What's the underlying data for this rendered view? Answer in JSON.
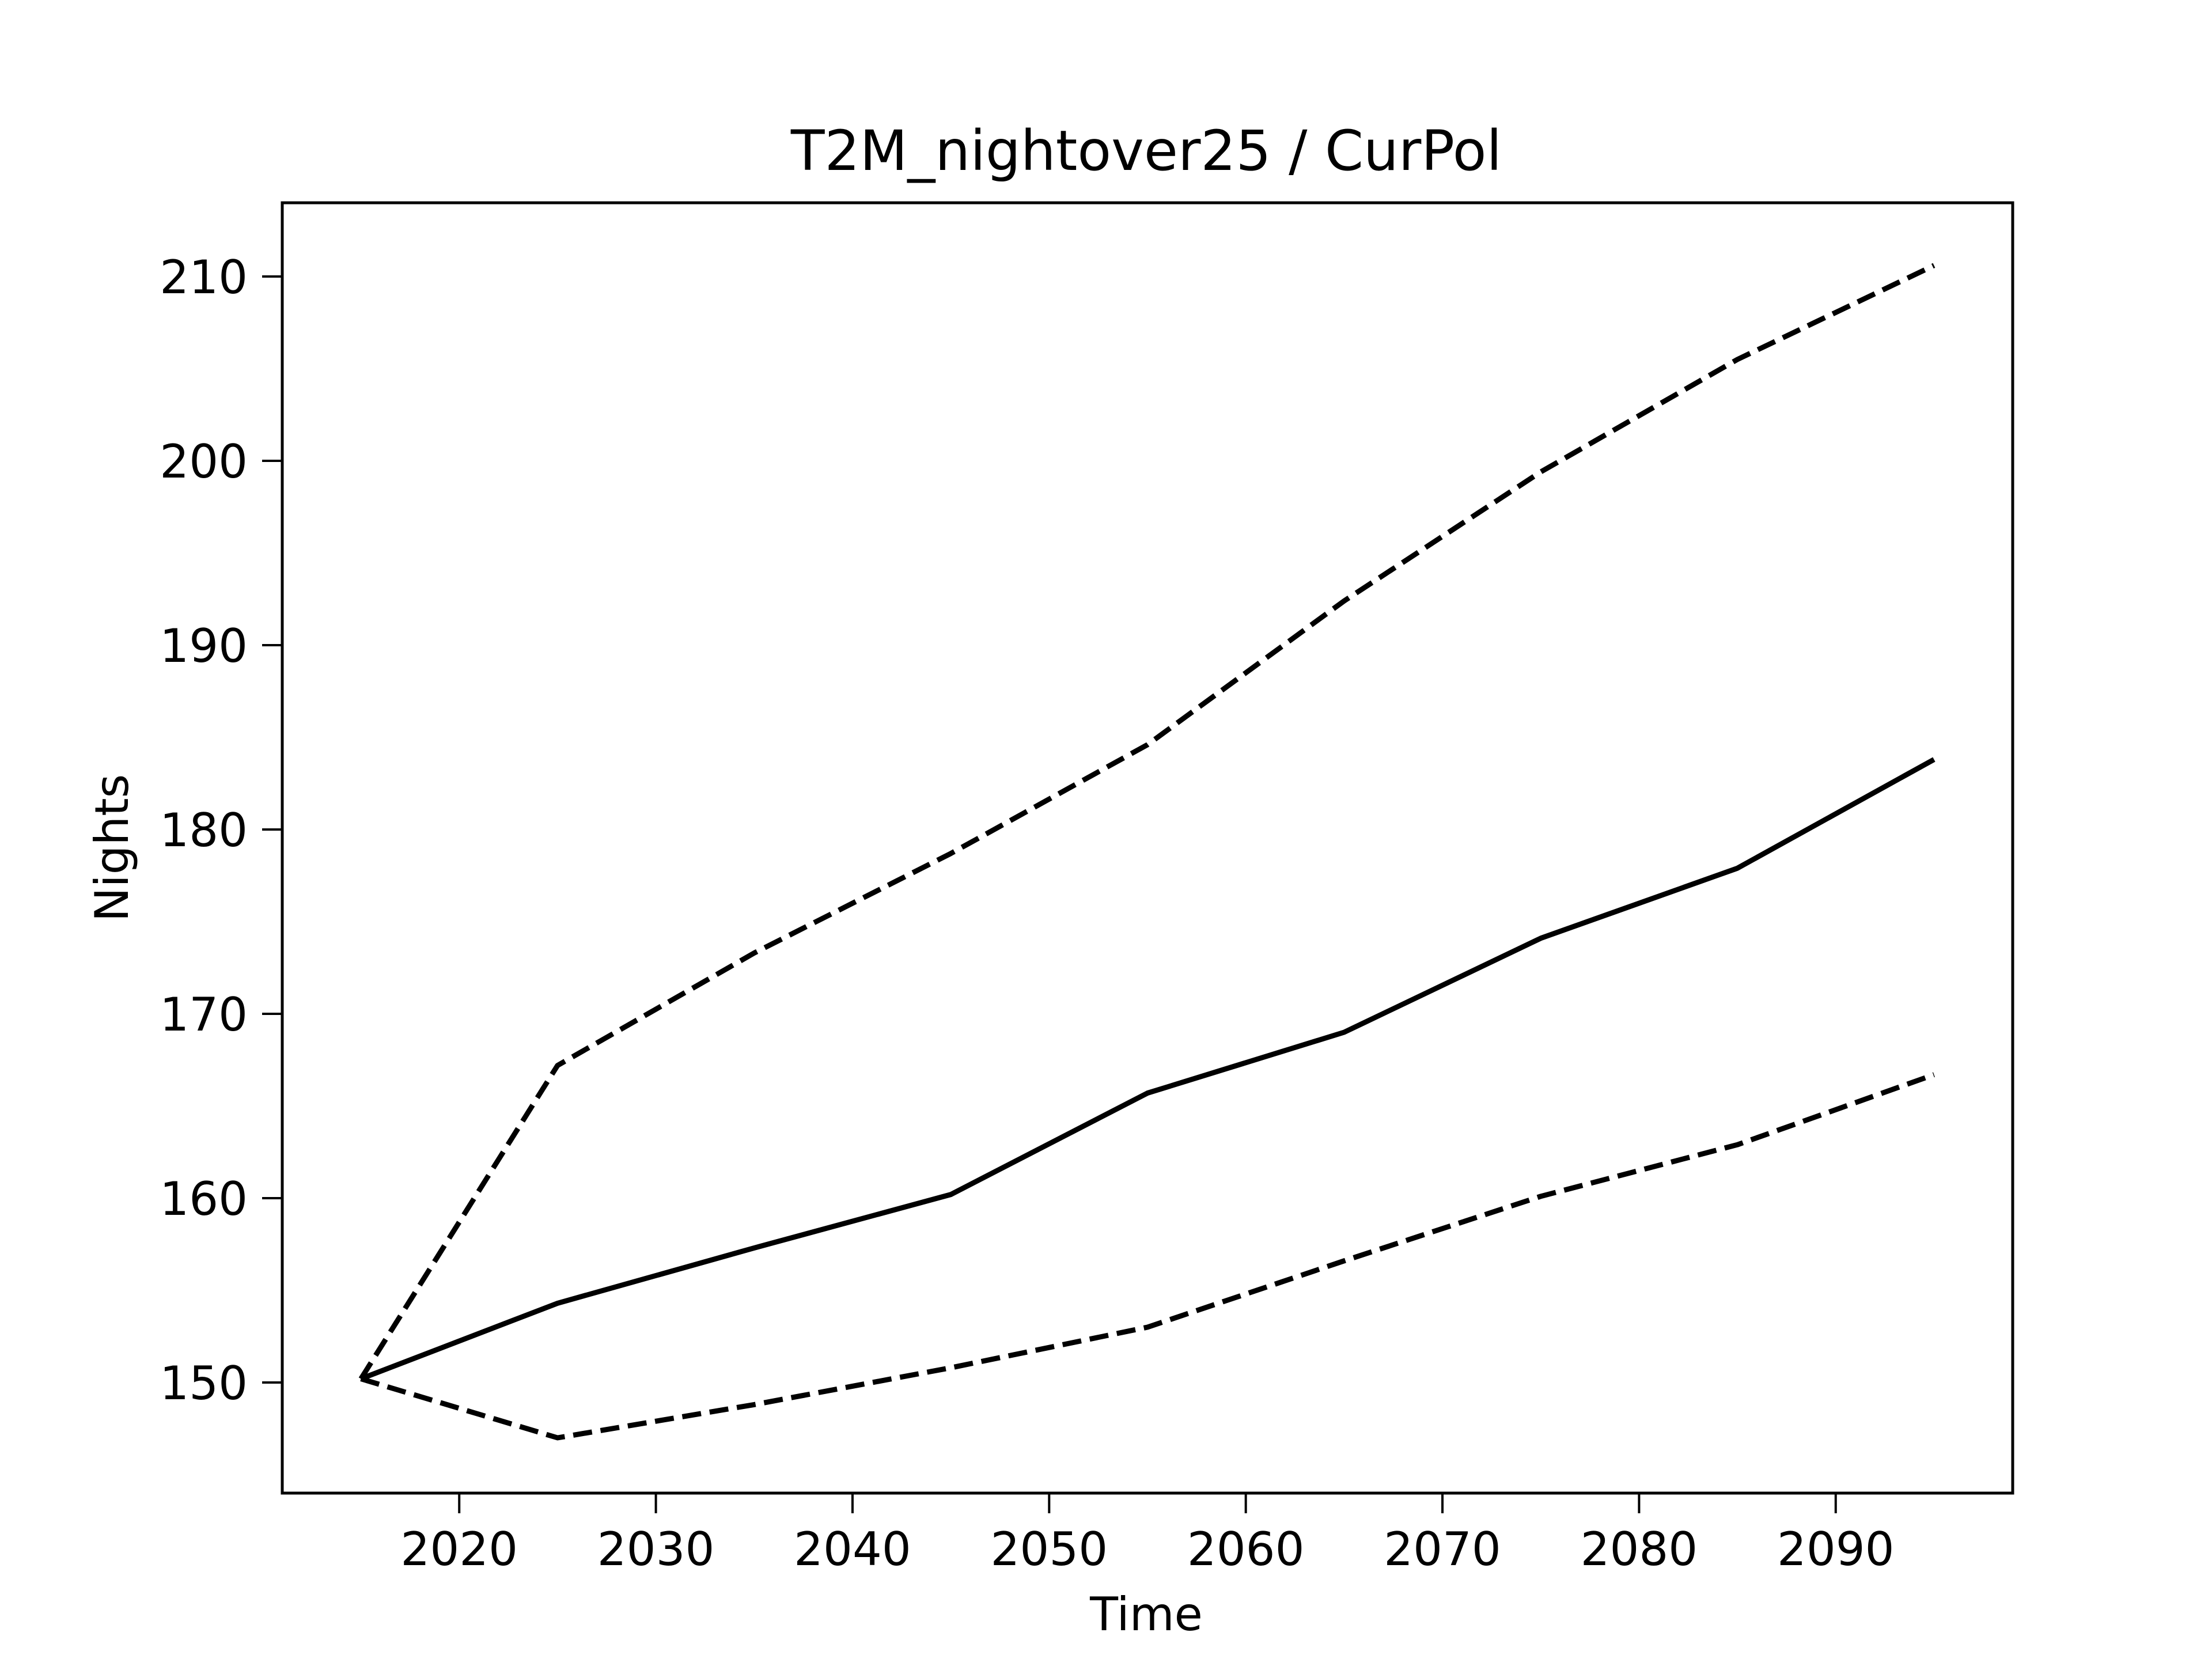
{
  "chart_data": {
    "type": "line",
    "title": "T2M_nightover25 / CurPol",
    "xlabel": "Time",
    "ylabel": "Nights",
    "xlim": [
      2011,
      2099
    ],
    "ylim": [
      144,
      214
    ],
    "xticks": [
      2020,
      2030,
      2040,
      2050,
      2060,
      2070,
      2080,
      2090
    ],
    "yticks": [
      150,
      160,
      170,
      180,
      190,
      200,
      210
    ],
    "grid": false,
    "legend": "none",
    "x": [
      2015,
      2025,
      2035,
      2045,
      2055,
      2065,
      2075,
      2085,
      2095
    ],
    "series": [
      {
        "style": "solid",
        "color": "#000000",
        "values": [
          150.2,
          154.3,
          157.3,
          160.2,
          165.7,
          169.0,
          174.1,
          177.9,
          183.8
        ]
      },
      {
        "style": "dashed",
        "color": "#000000",
        "values": [
          150.2,
          167.2,
          173.3,
          178.7,
          184.6,
          192.4,
          199.4,
          205.5,
          210.6
        ]
      },
      {
        "style": "dashed",
        "color": "#000000",
        "values": [
          150.2,
          147.0,
          148.8,
          150.8,
          153.0,
          156.6,
          160.1,
          162.9,
          166.7
        ]
      }
    ]
  }
}
